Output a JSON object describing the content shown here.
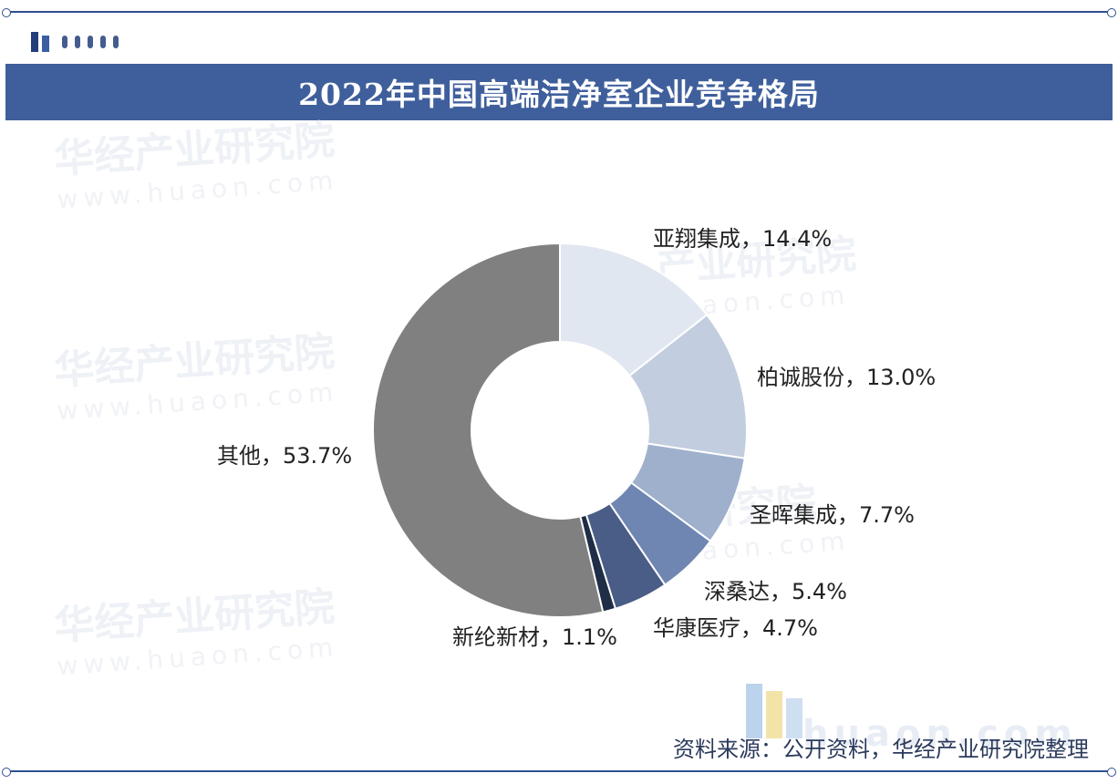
{
  "header": {
    "title": "2022年中国高端洁净室企业竞争格局"
  },
  "chart_data": {
    "type": "pie",
    "variant": "donut",
    "title": "2022年中国高端洁净室企业竞争格局",
    "categories": [
      "亚翔集成",
      "柏诚股份",
      "圣晖集成",
      "深桑达",
      "华康医疗",
      "新纶新材",
      "其他"
    ],
    "values": [
      14.4,
      13.0,
      7.7,
      5.4,
      4.7,
      1.1,
      53.7
    ],
    "labels": [
      "亚翔集成，14.4%",
      "柏诚股份，13.0%",
      "圣晖集成，7.7%",
      "深桑达，5.4%",
      "华康医疗，4.7%",
      "新纶新材，1.1%",
      "其他，53.7%"
    ],
    "colors": [
      "#e1e7f0",
      "#c2cde0",
      "#9fb0cd",
      "#6f86b3",
      "#4a5d87",
      "#1f2d46",
      "#808080"
    ],
    "unit": "%",
    "legend": "none"
  },
  "footer": {
    "source": "资料来源：公开资料，华经产业研究院整理"
  }
}
